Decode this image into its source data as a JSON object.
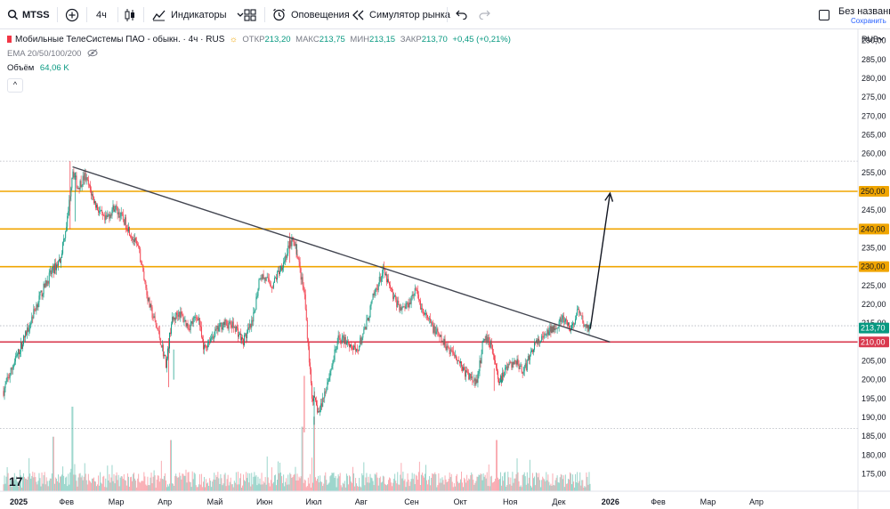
{
  "toolbar": {
    "symbol": "MTSS",
    "interval": "4ч",
    "indicators_label": "Индикаторы",
    "alerts_label": "Оповещения",
    "replay_label": "Симулятор рынка",
    "layout_name": "Без названия",
    "layout_status": "Сохранить"
  },
  "legend": {
    "title": "Мобильные ТелеСистемы ПАО - обыкн. · 4ч · RUS",
    "open_label": "ОТКР",
    "open": "213,20",
    "high_label": "МАКС",
    "high": "213,75",
    "low_label": "МИН",
    "low": "213,15",
    "close_label": "ЗАКР",
    "close": "213,70",
    "change": "+0,45 (+0,21%)",
    "ema": "EMA 20/50/100/200",
    "volume_label": "Объём",
    "volume_value": "64,06 K",
    "collapse_glyph": "^"
  },
  "colors": {
    "up": "#089981",
    "down": "#f23645",
    "level": "#f0a500",
    "support": "#d9394e",
    "trend": "#434651",
    "price_tag": "#089981"
  },
  "chart_data": {
    "type": "candlestick",
    "symbol": "MTSS",
    "currency": "RUB",
    "ylim": [
      172.5,
      293
    ],
    "y_ticks": [
      "175,00",
      "180,00",
      "185,00",
      "190,00",
      "195,00",
      "200,00",
      "205,00",
      "210,00",
      "215,00",
      "220,00",
      "225,00",
      "230,00",
      "235,00",
      "240,00",
      "245,00",
      "250,00",
      "255,00",
      "260,00",
      "265,00",
      "270,00",
      "275,00",
      "280,00",
      "285,00",
      "290,00"
    ],
    "x_ticks": [
      {
        "label": "2025",
        "bold": true,
        "m": 0
      },
      {
        "label": "Фев",
        "m": 1
      },
      {
        "label": "Мар",
        "m": 2
      },
      {
        "label": "Апр",
        "m": 3
      },
      {
        "label": "Май",
        "m": 4
      },
      {
        "label": "Июн",
        "m": 5
      },
      {
        "label": "Июл",
        "m": 6
      },
      {
        "label": "Авг",
        "m": 7
      },
      {
        "label": "Сен",
        "m": 8
      },
      {
        "label": "Окт",
        "m": 9
      },
      {
        "label": "Ноя",
        "m": 10
      },
      {
        "label": "Дек",
        "m": 11
      },
      {
        "label": "2026",
        "bold": true,
        "m": 12
      },
      {
        "label": "Фев",
        "m": 13
      },
      {
        "label": "Мар",
        "m": 14
      },
      {
        "label": "Апр",
        "m": 15
      }
    ],
    "price_path": [
      [
        0.0,
        197
      ],
      [
        0.2,
        204
      ],
      [
        0.45,
        212
      ],
      [
        0.7,
        221
      ],
      [
        0.95,
        228
      ],
      [
        1.15,
        232
      ],
      [
        1.3,
        243
      ],
      [
        1.4,
        256
      ],
      [
        1.5,
        251
      ],
      [
        1.65,
        254
      ],
      [
        1.85,
        247
      ],
      [
        2.05,
        242
      ],
      [
        2.25,
        246
      ],
      [
        2.5,
        241
      ],
      [
        2.75,
        234
      ],
      [
        2.95,
        220
      ],
      [
        3.15,
        212
      ],
      [
        3.3,
        204
      ],
      [
        3.4,
        215
      ],
      [
        3.55,
        218
      ],
      [
        3.75,
        214
      ],
      [
        3.95,
        217
      ],
      [
        4.05,
        208
      ],
      [
        4.2,
        211
      ],
      [
        4.45,
        215
      ],
      [
        4.7,
        214
      ],
      [
        4.85,
        210
      ],
      [
        5.05,
        215
      ],
      [
        5.2,
        228
      ],
      [
        5.45,
        225
      ],
      [
        5.7,
        232
      ],
      [
        5.85,
        237
      ],
      [
        5.95,
        234
      ],
      [
        6.05,
        226
      ],
      [
        6.1,
        223
      ],
      [
        6.25,
        196
      ],
      [
        6.4,
        191
      ],
      [
        6.6,
        201
      ],
      [
        6.8,
        211
      ],
      [
        7.0,
        210
      ],
      [
        7.15,
        207
      ],
      [
        7.35,
        214
      ],
      [
        7.5,
        222
      ],
      [
        7.7,
        229
      ],
      [
        7.9,
        222
      ],
      [
        8.05,
        219
      ],
      [
        8.2,
        220
      ],
      [
        8.35,
        224
      ],
      [
        8.5,
        218
      ],
      [
        8.7,
        214
      ],
      [
        8.9,
        210
      ],
      [
        9.05,
        208
      ],
      [
        9.2,
        206
      ],
      [
        9.35,
        202
      ],
      [
        9.6,
        199
      ],
      [
        9.75,
        212
      ],
      [
        9.9,
        209
      ],
      [
        10.05,
        199
      ],
      [
        10.2,
        203
      ],
      [
        10.4,
        205
      ],
      [
        10.55,
        202
      ],
      [
        10.75,
        209
      ],
      [
        10.95,
        211
      ],
      [
        11.15,
        214
      ],
      [
        11.35,
        216
      ],
      [
        11.5,
        213
      ],
      [
        11.65,
        218
      ],
      [
        11.8,
        214
      ],
      [
        11.9,
        213.7
      ]
    ],
    "ranges": [
      [
        1.35,
        1.45,
        240,
        258
      ],
      [
        6.1,
        6.3,
        186,
        201
      ],
      [
        3.35,
        3.45,
        198,
        211
      ],
      [
        9.95,
        10.1,
        197,
        203
      ],
      [
        5.8,
        5.95,
        231,
        239
      ]
    ],
    "volume_spikes": [
      [
        1.4,
        1.0
      ],
      [
        6.3,
        0.85
      ],
      [
        6.05,
        0.7
      ],
      [
        1.0,
        0.55
      ],
      [
        3.4,
        0.5
      ],
      [
        10.0,
        0.5
      ]
    ],
    "horizontal_levels": [
      {
        "price": 250,
        "label": "250,00",
        "kind": "level"
      },
      {
        "price": 240,
        "label": "240,00",
        "kind": "level"
      },
      {
        "price": 230,
        "label": "230,00",
        "kind": "level"
      },
      {
        "price": 210,
        "label": "210,00",
        "kind": "support"
      }
    ],
    "dotted_levels": [
      258,
      214.3,
      187
    ],
    "trendline": {
      "from": [
        1.4,
        256.5
      ],
      "to": [
        12.3,
        210
      ]
    },
    "arrow": {
      "from": [
        11.9,
        213.5
      ],
      "to": [
        12.3,
        249.5
      ]
    },
    "last_price": {
      "price": 213.7,
      "label": "213,70"
    },
    "logo_text": "17"
  }
}
